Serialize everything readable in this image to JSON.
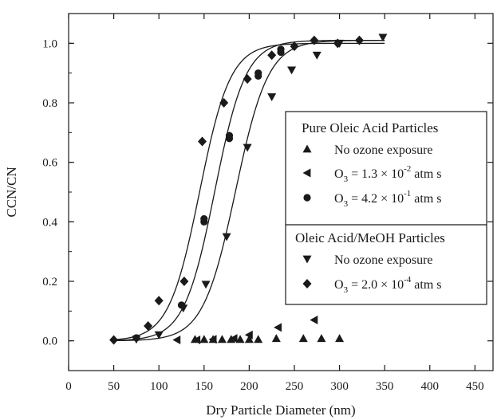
{
  "chart_data": {
    "type": "scatter",
    "xlabel": "Dry Particle Diameter (nm)",
    "ylabel": "CCN/CN",
    "xlim": [
      0,
      470
    ],
    "ylim": [
      -0.1,
      1.1
    ],
    "xticks": [
      "0",
      "50",
      "100",
      "150",
      "200",
      "250",
      "300",
      "350",
      "400",
      "450"
    ],
    "yticks": [
      "0.0",
      "0.2",
      "0.4",
      "0.6",
      "0.8",
      "1.0"
    ],
    "grid": false,
    "legend_position": "right",
    "legend_groups": [
      {
        "heading": "Pure Oleic Acid Particles",
        "entries": [
          {
            "marker": "triangle-up",
            "label": "No ozone exposure"
          },
          {
            "marker": "triangle-left",
            "label": "O3 = 1.3 × 10^-2 atm s",
            "prefix": "O",
            "sub": "3",
            "mid": " = 1.3 × 10",
            "sup": "-2",
            "suffix": " atm s"
          },
          {
            "marker": "circle",
            "label": "O3 = 4.2 × 10^-1 atm s",
            "prefix": "O",
            "sub": "3",
            "mid": " = 4.2 × 10",
            "sup": "-1",
            "suffix": " atm s"
          }
        ]
      },
      {
        "heading": "Oleic Acid/MeOH Particles",
        "entries": [
          {
            "marker": "triangle-down",
            "label": "No ozone exposure"
          },
          {
            "marker": "diamond",
            "label": "O3 = 2.0 × 10^-4 atm s",
            "prefix": "O",
            "sub": "3",
            "mid": " = 2.0 × 10",
            "sup": "-4",
            "suffix": " atm s"
          }
        ]
      }
    ],
    "series": [
      {
        "name": "No ozone exposure",
        "group": "Pure Oleic Acid Particles",
        "marker": "triangle-up",
        "points": [
          [
            140,
            0.005
          ],
          [
            150,
            0.005
          ],
          [
            160,
            0.005
          ],
          [
            170,
            0.005
          ],
          [
            180,
            0.005
          ],
          [
            190,
            0.005
          ],
          [
            200,
            0.005
          ],
          [
            210,
            0.005
          ],
          [
            230,
            0.008
          ],
          [
            260,
            0.008
          ],
          [
            280,
            0.008
          ],
          [
            300,
            0.008
          ]
        ]
      },
      {
        "name": "O3 = 1.3 × 10^-2 atm s",
        "group": "Pure Oleic Acid Particles",
        "marker": "triangle-left",
        "points": [
          [
            120,
            0.003
          ],
          [
            142,
            0.003
          ],
          [
            160,
            0.005
          ],
          [
            183,
            0.008
          ],
          [
            200,
            0.02
          ],
          [
            232,
            0.045
          ],
          [
            272,
            0.07
          ]
        ]
      },
      {
        "name": "O3 = 4.2 × 10^-1 atm s",
        "group": "Pure Oleic Acid Particles",
        "marker": "circle",
        "points": [
          [
            75,
            0.01
          ],
          [
            125,
            0.12
          ],
          [
            150,
            0.4
          ],
          [
            150,
            0.41
          ],
          [
            178,
            0.68
          ],
          [
            178,
            0.69
          ],
          [
            210,
            0.89
          ],
          [
            210,
            0.9
          ],
          [
            235,
            0.98
          ],
          [
            235,
            0.97
          ]
        ]
      },
      {
        "name": "No ozone exposure",
        "group": "Oleic Acid/MeOH Particles",
        "marker": "triangle-down",
        "points": [
          [
            75,
            0.005
          ],
          [
            100,
            0.02
          ],
          [
            127,
            0.11
          ],
          [
            152,
            0.19
          ],
          [
            175,
            0.35
          ],
          [
            198,
            0.65
          ],
          [
            225,
            0.82
          ],
          [
            247,
            0.91
          ],
          [
            275,
            0.96
          ],
          [
            300,
            1.0
          ],
          [
            348,
            1.02
          ]
        ]
      },
      {
        "name": "O3 = 2.0 × 10^-4 atm s",
        "group": "Oleic Acid/MeOH Particles",
        "marker": "diamond",
        "points": [
          [
            50,
            0.003
          ],
          [
            88,
            0.05
          ],
          [
            100,
            0.135
          ],
          [
            128,
            0.2
          ],
          [
            148,
            0.67
          ],
          [
            172,
            0.8
          ],
          [
            198,
            0.88
          ],
          [
            225,
            0.96
          ],
          [
            250,
            0.99
          ],
          [
            272,
            1.01
          ],
          [
            298,
            1.0
          ],
          [
            322,
            1.01
          ]
        ]
      }
    ],
    "fit_curves": [
      {
        "d50": 145,
        "width": 17,
        "plateau": 1.0,
        "xmax": 350
      },
      {
        "d50": 162,
        "width": 17,
        "plateau": 1.01,
        "xmax": 350
      },
      {
        "d50": 185,
        "width": 18,
        "plateau": 1.01,
        "xmax": 350
      }
    ]
  }
}
